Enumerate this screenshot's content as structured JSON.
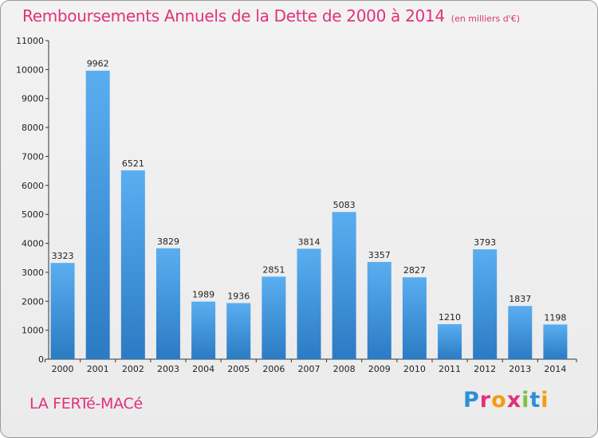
{
  "header": {
    "title": "Remboursements Annuels de la Dette de 2000 à 2014",
    "unit": "(en milliers d'€)"
  },
  "footer": {
    "commune": "LA FERTé-MACé",
    "logo_text": "Proxiti"
  },
  "colors": {
    "accent": "#e0327a",
    "bar_top": "#5aaef0",
    "bar_bottom": "#2b7bc4"
  },
  "chart_data": {
    "type": "bar",
    "title": "Remboursements Annuels de la Dette de 2000 à 2014",
    "xlabel": "",
    "ylabel": "",
    "unit": "(en milliers d'€)",
    "categories": [
      "2000",
      "2001",
      "2002",
      "2003",
      "2004",
      "2005",
      "2006",
      "2007",
      "2008",
      "2009",
      "2010",
      "2011",
      "2012",
      "2013",
      "2014"
    ],
    "values": [
      3323,
      9962,
      6521,
      3829,
      1989,
      1936,
      2851,
      3814,
      5083,
      3357,
      2827,
      1210,
      3793,
      1837,
      1198
    ],
    "ylim": [
      0,
      11000
    ],
    "yticks": [
      0,
      1000,
      2000,
      3000,
      4000,
      5000,
      6000,
      7000,
      8000,
      9000,
      10000,
      11000
    ],
    "grid": false
  }
}
